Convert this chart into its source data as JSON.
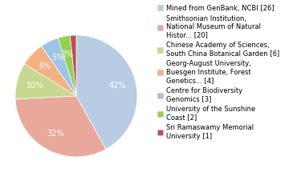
{
  "legend_labels": [
    "Mined from GenBank, NCBI [26]",
    "Smithsonian Institution,\nNational Museum of Natural\nHistor... [20]",
    "Chinese Academy of Sciences,\nSouth China Botanical Garden [6]",
    "Georg-August University,\nBuesgen Institute, Forest\nGenetics... [4]",
    "Centre for Biodiversity\nGenomics [3]",
    "University of the Sunshine\nCoast [2]",
    "Sri Ramaswamy Memorial\nUniversity [1]"
  ],
  "values": [
    26,
    20,
    6,
    4,
    3,
    2,
    1
  ],
  "colors": [
    "#b8cce4",
    "#e8a89c",
    "#c6d98e",
    "#f4b183",
    "#9dc3e6",
    "#92d050",
    "#c0504d"
  ],
  "text_color": "#ffffff",
  "pct_fontsize": 7.0,
  "legend_fontsize": 6.0,
  "startangle": 90
}
